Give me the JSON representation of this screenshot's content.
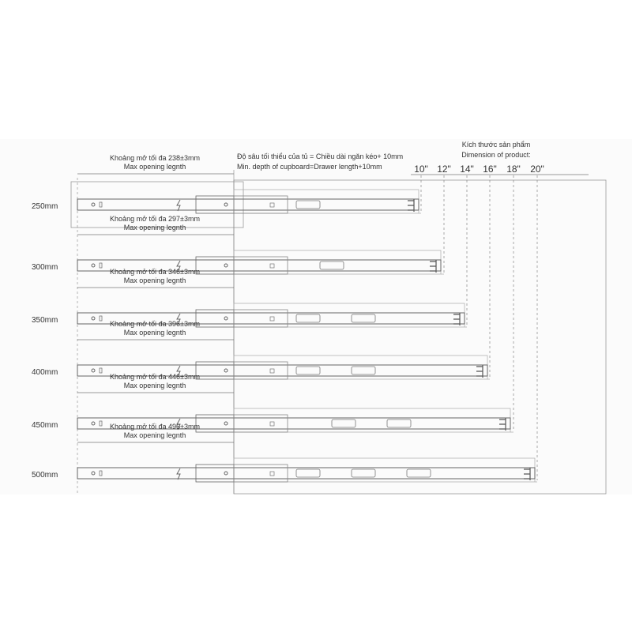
{
  "header": {
    "depth_vi": "Độ sâu tối thiểu của tủ = Chiều dài ngăn kéo+ 10mm",
    "depth_en": "Min. depth of cupboard=Drawer length+10mm",
    "dimension_vi": "Kích thước sản phẩm",
    "dimension_en": "Dimension of product:"
  },
  "sizes_inch": [
    "10\"",
    "12\"",
    "14\"",
    "16\"",
    "18\"",
    "20\""
  ],
  "rows": [
    {
      "label": "250mm",
      "opening_vi": "Khoảng mở tối đa 238±3mm",
      "opening_en": "Max opening legnth"
    },
    {
      "label": "300mm",
      "opening_vi": "Khoảng mở tối đa 297±3mm",
      "opening_en": "Max opening legnth"
    },
    {
      "label": "350mm",
      "opening_vi": "Khoảng mở tối đa 346±3mm",
      "opening_en": "Max opening legnth"
    },
    {
      "label": "400mm",
      "opening_vi": "Khoảng mở tối đa 396±3mm",
      "opening_en": "Max opening legnth"
    },
    {
      "label": "450mm",
      "opening_vi": "Khoảng mở tối đa 446±3mm",
      "opening_en": "Max opening legnth"
    },
    {
      "label": "500mm",
      "opening_vi": "Khoảng mở tối đa 496±3mm",
      "opening_en": "Max opening legnth"
    }
  ]
}
